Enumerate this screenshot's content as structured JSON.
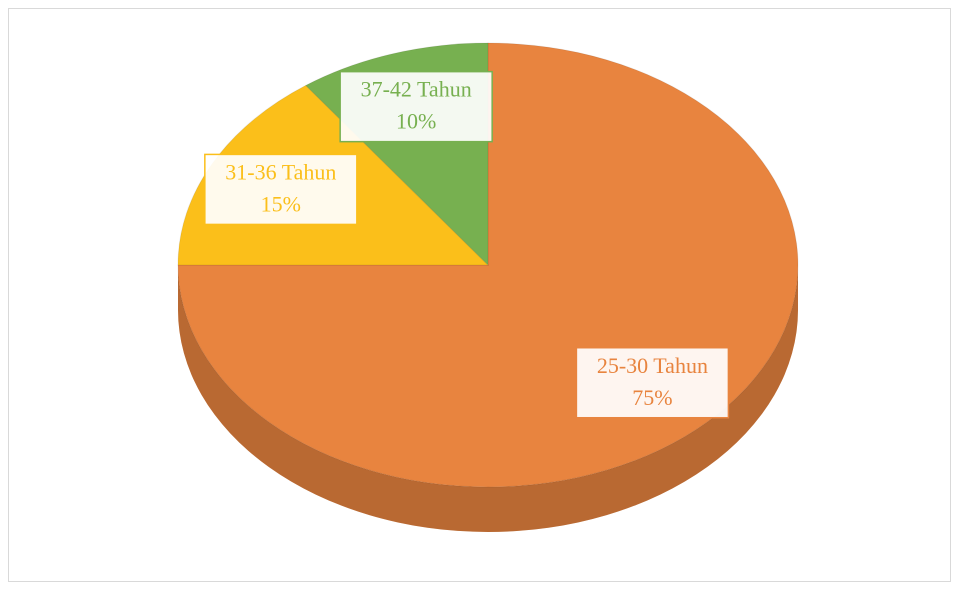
{
  "chart_data": {
    "type": "pie",
    "categories": [
      "25-30 Tahun",
      "31-36 Tahun",
      "37-42 Tahun"
    ],
    "values": [
      75,
      15,
      10
    ],
    "value_labels": [
      "75%",
      "15%",
      "10%"
    ],
    "colors": [
      "#e8843f",
      "#fbbf1a",
      "#77b050"
    ]
  }
}
